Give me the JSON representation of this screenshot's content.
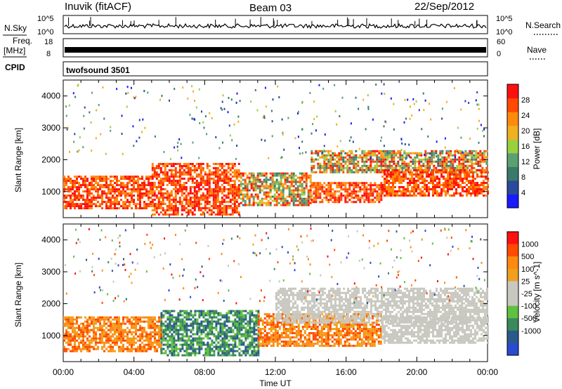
{
  "header": {
    "station": "Inuvik (fitACF)",
    "beam": "Beam 03",
    "date": "22/Sep/2012"
  },
  "panels": {
    "nsky_label": "N.Sky",
    "nsky_ticks": [
      "10^5",
      "10^0"
    ],
    "nsearch_label": "N.Search",
    "nsearch_ticks": [
      "10^5",
      "10^0"
    ],
    "freq_label_1": "Freq.",
    "freq_label_2": "[MHz]",
    "freq_ticks": [
      "18",
      "8"
    ],
    "nave_label": "Nave",
    "nave_ticks": [
      "60",
      "0"
    ],
    "cpid_label": "CPID",
    "cpid_value": "twofsound 3501"
  },
  "colors": {
    "power_scale": [
      "#1a1aff",
      "#2a4a9a",
      "#3a7a6a",
      "#5aa070",
      "#9ad040",
      "#f0b020",
      "#ff8a10",
      "#ff4a00",
      "#ff1010"
    ],
    "velocity_scale": [
      "#ff1010",
      "#ff4a00",
      "#ff8a10",
      "#f0a020",
      "#c8c8c0",
      "#c8c8c0",
      "#60c040",
      "#3a8a5a",
      "#2a5a8a",
      "#2a4acf"
    ]
  },
  "chart_data": [
    {
      "type": "heatmap",
      "name": "power",
      "xlabel": "",
      "ylabel": "Slant Range [km]",
      "x_ticks": [
        "00:00",
        "04:00",
        "08:00",
        "12:00",
        "16:00",
        "20:00",
        "00:00"
      ],
      "y_ticks": [
        1000,
        2000,
        3000,
        4000
      ],
      "xlim_hours": [
        0,
        24
      ],
      "ylim_km": [
        180,
        4500
      ],
      "colorbar": {
        "label": "Power [dB]",
        "ticks": [
          4,
          8,
          12,
          16,
          20,
          24,
          28
        ],
        "range": [
          0,
          32
        ]
      },
      "bands": [
        {
          "t_start": 0,
          "t_end": 5,
          "range_min": 500,
          "range_max": 1500,
          "level": "high"
        },
        {
          "t_start": 5,
          "t_end": 10,
          "range_min": 300,
          "range_max": 1900,
          "level": "high"
        },
        {
          "t_start": 10,
          "t_end": 14,
          "range_min": 600,
          "range_max": 1600,
          "level": "medium"
        },
        {
          "t_start": 14,
          "t_end": 18,
          "range_min": 700,
          "range_max": 1300,
          "level": "high"
        },
        {
          "t_start": 14,
          "t_end": 24,
          "range_min": 1600,
          "range_max": 2300,
          "level": "medium"
        },
        {
          "t_start": 18,
          "t_end": 24,
          "range_min": 900,
          "range_max": 1700,
          "level": "high"
        }
      ]
    },
    {
      "type": "heatmap",
      "name": "velocity",
      "xlabel": "Time UT",
      "ylabel": "Slant Range [km]",
      "x_ticks": [
        "00:00",
        "04:00",
        "08:00",
        "12:00",
        "16:00",
        "20:00",
        "00:00"
      ],
      "y_ticks": [
        1000,
        2000,
        3000,
        4000
      ],
      "xlim_hours": [
        0,
        24
      ],
      "ylim_km": [
        180,
        4500
      ],
      "colorbar": {
        "label": "Velocity [m s^-1]",
        "ticks": [
          1000,
          500,
          100,
          25,
          -25,
          -100,
          -500,
          -1000
        ]
      },
      "bands": [
        {
          "t_start": 0,
          "t_end": 5.5,
          "range_min": 500,
          "range_max": 1600,
          "level": "away_medium"
        },
        {
          "t_start": 5.5,
          "t_end": 11,
          "range_min": 400,
          "range_max": 1800,
          "level": "toward_medium"
        },
        {
          "t_start": 11,
          "t_end": 18,
          "range_min": 700,
          "range_max": 1700,
          "level": "away_medium"
        },
        {
          "t_start": 12,
          "t_end": 24,
          "range_min": 1400,
          "range_max": 2500,
          "level": "low"
        },
        {
          "t_start": 18,
          "t_end": 24,
          "range_min": 800,
          "range_max": 1600,
          "level": "low"
        }
      ]
    }
  ]
}
